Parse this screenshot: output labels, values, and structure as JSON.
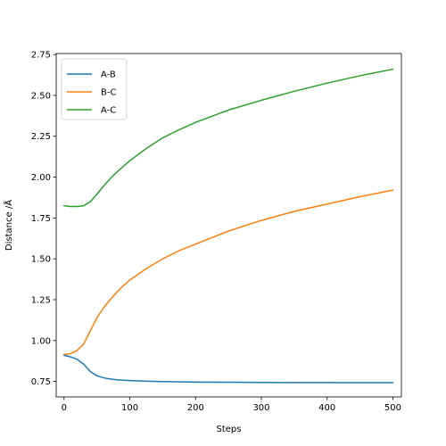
{
  "chart_data": {
    "type": "line",
    "title": "",
    "xlabel": "Steps",
    "ylabel": "Distance /Å",
    "xlim": [
      -12,
      513
    ],
    "ylim": [
      0.655,
      2.756
    ],
    "xticks": [
      0,
      100,
      200,
      300,
      400,
      500
    ],
    "yticks": [
      0.75,
      1.0,
      1.25,
      1.5,
      1.75,
      2.0,
      2.25,
      2.5,
      2.75
    ],
    "ytick_labels": [
      "0.75",
      "1.00",
      "1.25",
      "1.50",
      "1.75",
      "2.00",
      "2.25",
      "2.50",
      "2.75"
    ],
    "grid": false,
    "legend_position": "top-left",
    "series": [
      {
        "name": "A-B",
        "color": "#1f77b4",
        "x": [
          0,
          10,
          20,
          30,
          40,
          50,
          60,
          70,
          80,
          90,
          100,
          125,
          150,
          200,
          250,
          300,
          350,
          400,
          450,
          500
        ],
        "values": [
          0.91,
          0.9,
          0.885,
          0.855,
          0.81,
          0.785,
          0.772,
          0.765,
          0.76,
          0.757,
          0.755,
          0.751,
          0.749,
          0.746,
          0.745,
          0.744,
          0.743,
          0.743,
          0.742,
          0.742
        ]
      },
      {
        "name": "B-C",
        "color": "#ff7f0e",
        "x": [
          0,
          10,
          20,
          30,
          40,
          50,
          60,
          70,
          80,
          90,
          100,
          125,
          150,
          175,
          200,
          250,
          300,
          350,
          400,
          450,
          500
        ],
        "values": [
          0.915,
          0.92,
          0.94,
          0.98,
          1.06,
          1.14,
          1.2,
          1.25,
          1.295,
          1.335,
          1.37,
          1.44,
          1.5,
          1.55,
          1.59,
          1.67,
          1.735,
          1.79,
          1.835,
          1.88,
          1.92
        ]
      },
      {
        "name": "A-C",
        "color": "#2ca02c",
        "x": [
          0,
          10,
          20,
          30,
          40,
          50,
          60,
          70,
          80,
          90,
          100,
          125,
          150,
          175,
          200,
          250,
          300,
          350,
          400,
          450,
          500
        ],
        "values": [
          1.825,
          1.82,
          1.82,
          1.825,
          1.85,
          1.895,
          1.945,
          1.99,
          2.03,
          2.065,
          2.1,
          2.175,
          2.24,
          2.29,
          2.335,
          2.41,
          2.47,
          2.525,
          2.575,
          2.62,
          2.66
        ]
      }
    ]
  }
}
